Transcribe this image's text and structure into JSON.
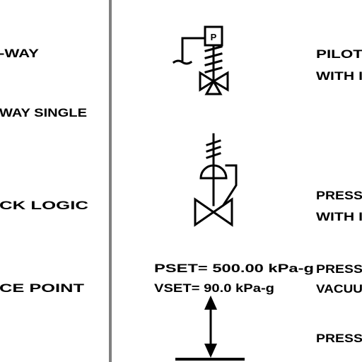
{
  "colors": {
    "ink": "#000000",
    "divider": "#808080",
    "background": "#ffffff"
  },
  "left_column": {
    "row1": "-WAY",
    "row2": "WAY SINGLE",
    "row3": "CK LOGIC",
    "row4": "CE POINT"
  },
  "pilot_box_letter": "P",
  "setpoints": {
    "pset": "PSET= 500.00 kPa-g",
    "vset": "VSET= 90.0 kPa-g"
  },
  "right_column": {
    "row1_line1": "PILOT",
    "row1_line2": "WITH I",
    "row2_line1": "PRESS",
    "row2_line2": "WITH I",
    "row3_line1": "PRESS",
    "row3_line2": "VACUU",
    "row4_line1": "PRESS"
  },
  "icons": [
    "pilot-operated-valve-icon",
    "pressure-regulator-valve-icon",
    "pressure-vacuum-vent-icon"
  ]
}
